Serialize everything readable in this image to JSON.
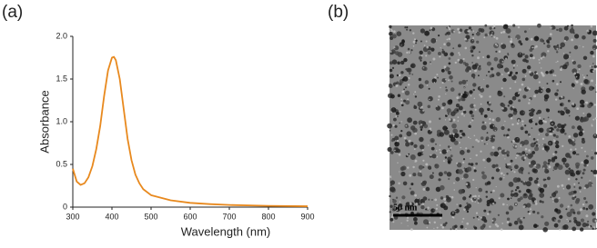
{
  "panels": {
    "a_label": "(a)",
    "b_label": "(b)"
  },
  "chart_data": {
    "type": "line",
    "xlabel": "Wavelength (nm)",
    "ylabel": "Absorbance",
    "x": [
      300,
      310,
      320,
      330,
      340,
      350,
      360,
      370,
      380,
      390,
      400,
      405,
      410,
      420,
      430,
      440,
      450,
      460,
      470,
      480,
      500,
      550,
      600,
      650,
      700,
      800,
      900
    ],
    "series": [
      {
        "color": "#e8891e",
        "values": [
          0.45,
          0.3,
          0.26,
          0.28,
          0.35,
          0.48,
          0.68,
          0.95,
          1.3,
          1.6,
          1.75,
          1.76,
          1.72,
          1.5,
          1.15,
          0.8,
          0.55,
          0.38,
          0.28,
          0.21,
          0.14,
          0.08,
          0.05,
          0.035,
          0.025,
          0.015,
          0.01
        ]
      }
    ],
    "xlim": [
      300,
      900
    ],
    "xticks": [
      300,
      400,
      500,
      600,
      700,
      800,
      900
    ],
    "ylim": [
      0,
      2.0
    ],
    "yticks": [
      0,
      0.5,
      {
        "value": 1.0,
        "label": "1.0"
      },
      1.5,
      {
        "value": 2.0,
        "label": "2.0"
      }
    ]
  },
  "tem_image": {
    "scale_bar": "50 nm"
  }
}
